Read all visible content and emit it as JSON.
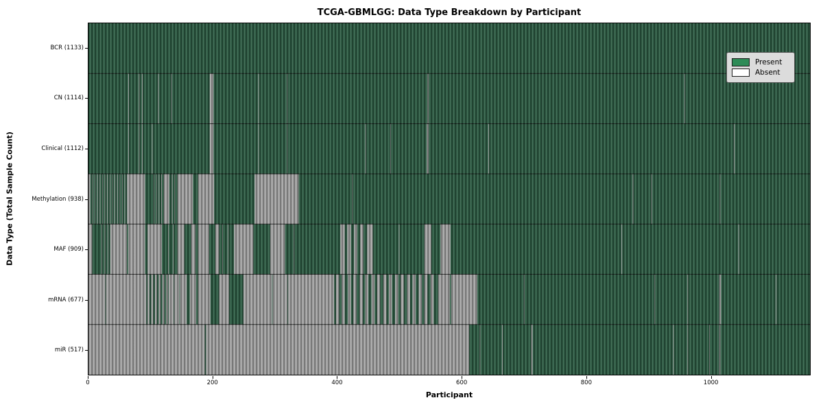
{
  "title": "TCGA-GBMLGG: Data Type Breakdown by Participant",
  "axes": {
    "x_label": "Participant",
    "y_label": "Data Type (Total Sample Count)",
    "x_ticks": [
      0,
      200,
      400,
      600,
      800,
      1000
    ],
    "axis_max": 1160
  },
  "legend": {
    "items": [
      {
        "label": "Present",
        "color": "#2e8b57"
      },
      {
        "label": "Absent",
        "color": "#ffffff"
      }
    ]
  },
  "colors": {
    "present_base": "#2c5c43",
    "absent_base": "#a6a6a6",
    "row_separator": "rgba(15,15,15,0.85)",
    "plot_border": "#000000"
  },
  "chart_data": {
    "type": "heatmap",
    "title": "TCGA-GBMLGG: Data Type Breakdown by Participant",
    "xlabel": "Participant",
    "ylabel": "Data Type (Total Sample Count)",
    "legend_position": "upper right",
    "grid": false,
    "n_participants": 1133,
    "x_axis_max": 1160,
    "x_tick_values": [
      0,
      200,
      400,
      600,
      800,
      1000
    ],
    "value_encoding": {
      "present": "green",
      "absent": "white"
    },
    "rows": [
      {
        "name": "BCR",
        "count": 1133,
        "label": "BCR (1133)",
        "absent_ranges": []
      },
      {
        "name": "CN",
        "count": 1114,
        "label": "CN (1114)",
        "absent_ranges": [
          [
            64,
            65
          ],
          [
            81,
            82
          ],
          [
            86,
            87
          ],
          [
            112,
            113
          ],
          [
            133,
            134
          ],
          [
            195,
            201
          ],
          [
            273,
            274
          ],
          [
            319,
            320
          ],
          [
            545,
            547
          ],
          [
            958,
            959
          ]
        ]
      },
      {
        "name": "Clinical",
        "count": 1112,
        "label": "Clinical (1112)",
        "absent_ranges": [
          [
            64,
            65
          ],
          [
            81,
            82
          ],
          [
            86,
            87
          ],
          [
            102,
            103
          ],
          [
            195,
            201
          ],
          [
            273,
            274
          ],
          [
            319,
            320
          ],
          [
            445,
            446
          ],
          [
            485,
            486
          ],
          [
            544,
            547
          ],
          [
            643,
            644
          ],
          [
            1038,
            1039
          ]
        ]
      },
      {
        "name": "Methylation",
        "count": 938,
        "label": "Methylation (938)",
        "absent_ranges": [
          [
            0,
            3
          ],
          [
            6,
            7
          ],
          [
            10,
            11
          ],
          [
            14,
            15
          ],
          [
            18,
            19
          ],
          [
            22,
            23
          ],
          [
            26,
            27
          ],
          [
            30,
            31
          ],
          [
            34,
            35
          ],
          [
            38,
            39
          ],
          [
            42,
            43
          ],
          [
            46,
            47
          ],
          [
            50,
            51
          ],
          [
            54,
            55
          ],
          [
            58,
            59
          ],
          [
            62,
            91
          ],
          [
            105,
            106
          ],
          [
            109,
            110
          ],
          [
            113,
            114
          ],
          [
            117,
            118
          ],
          [
            121,
            130
          ],
          [
            134,
            135
          ],
          [
            138,
            139
          ],
          [
            143,
            168
          ],
          [
            176,
            202
          ],
          [
            267,
            338
          ],
          [
            424,
            425
          ],
          [
            875,
            876
          ],
          [
            905,
            906
          ],
          [
            1015,
            1016
          ]
        ]
      },
      {
        "name": "MAF",
        "count": 909,
        "label": "MAF (909)",
        "absent_ranges": [
          [
            0,
            6
          ],
          [
            21,
            22
          ],
          [
            26,
            27
          ],
          [
            31,
            32
          ],
          [
            35,
            62
          ],
          [
            64,
            91
          ],
          [
            95,
            118
          ],
          [
            128,
            129
          ],
          [
            136,
            137
          ],
          [
            143,
            154
          ],
          [
            165,
            172
          ],
          [
            176,
            194
          ],
          [
            204,
            210
          ],
          [
            215,
            216
          ],
          [
            224,
            225
          ],
          [
            234,
            265
          ],
          [
            292,
            316
          ],
          [
            330,
            331
          ],
          [
            405,
            412
          ],
          [
            416,
            422
          ],
          [
            427,
            432
          ],
          [
            437,
            442
          ],
          [
            448,
            457
          ],
          [
            499,
            500
          ],
          [
            540,
            551
          ],
          [
            566,
            582
          ],
          [
            857,
            858
          ],
          [
            1045,
            1046
          ]
        ]
      },
      {
        "name": "mRNA",
        "count": 677,
        "label": "mRNA (677)",
        "absent_ranges": [
          [
            0,
            27
          ],
          [
            28,
            93
          ],
          [
            95,
            98
          ],
          [
            101,
            104
          ],
          [
            107,
            110
          ],
          [
            113,
            116
          ],
          [
            119,
            122
          ],
          [
            125,
            128
          ],
          [
            129,
            137
          ],
          [
            138,
            146
          ],
          [
            147,
            158
          ],
          [
            163,
            173
          ],
          [
            176,
            196
          ],
          [
            210,
            226
          ],
          [
            249,
            295
          ],
          [
            296,
            320
          ],
          [
            321,
            395
          ],
          [
            398,
            403
          ],
          [
            407,
            412
          ],
          [
            417,
            422
          ],
          [
            426,
            431
          ],
          [
            436,
            441
          ],
          [
            445,
            450
          ],
          [
            455,
            460
          ],
          [
            464,
            469
          ],
          [
            474,
            479
          ],
          [
            483,
            488
          ],
          [
            493,
            498
          ],
          [
            502,
            507
          ],
          [
            512,
            517
          ],
          [
            521,
            526
          ],
          [
            531,
            536
          ],
          [
            540,
            545
          ],
          [
            550,
            555
          ],
          [
            562,
            581
          ],
          [
            583,
            625
          ],
          [
            700,
            701
          ],
          [
            910,
            911
          ],
          [
            963,
            964
          ],
          [
            1014,
            1017
          ],
          [
            1105,
            1106
          ]
        ]
      },
      {
        "name": "miR",
        "count": 517,
        "label": "miR (517)",
        "absent_ranges": [
          [
            0,
            187
          ],
          [
            189,
            612
          ],
          [
            629,
            630
          ],
          [
            665,
            666
          ],
          [
            712,
            714
          ],
          [
            940,
            941
          ],
          [
            963,
            964
          ],
          [
            998,
            999
          ],
          [
            1014,
            1016
          ]
        ]
      }
    ]
  }
}
